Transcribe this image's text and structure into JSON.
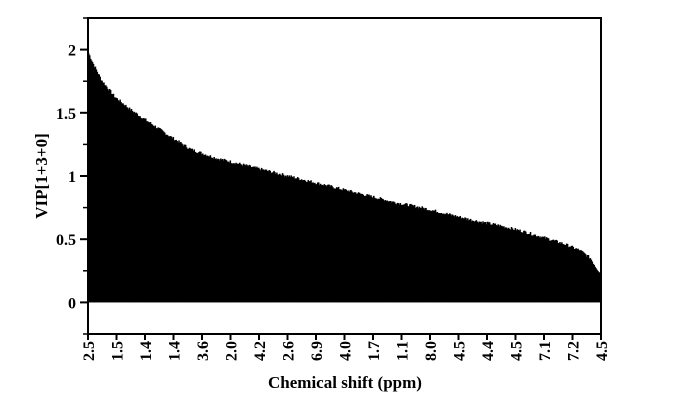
{
  "chart_data": {
    "type": "bar",
    "title": "",
    "xlabel": "Chemical shift (ppm)",
    "ylabel": "VIP[1+3+0]",
    "ylim": [
      -0.25,
      2.25
    ],
    "y_ticks": [
      0,
      0.5,
      1,
      1.5,
      2
    ],
    "y_tick_labels": [
      "0",
      "0.5",
      "1",
      "1.5",
      "2"
    ],
    "x_tick_labels": [
      "2.5",
      "1.5",
      "1.4",
      "1.4",
      "3.6",
      "2.0",
      "4.2",
      "2.6",
      "6.9",
      "4.0",
      "1.7",
      "1.1",
      "8.0",
      "4.5",
      "4.4",
      "4.5",
      "7.1",
      "7.2",
      "4.5"
    ],
    "bar_color": "#000000",
    "grid": false,
    "legend": "none",
    "num_variables": 540,
    "series": [
      {
        "name": "",
        "values_sorted_profile": {
          "description_ranks": "fraction of ordered variables (0 to 1)",
          "rank_fraction": [
            0.0,
            0.01,
            0.025,
            0.05,
            0.08,
            0.12,
            0.16,
            0.2,
            0.25,
            0.3,
            0.35,
            0.4,
            0.45,
            0.5,
            0.55,
            0.6,
            0.65,
            0.7,
            0.75,
            0.8,
            0.85,
            0.9,
            0.93,
            0.96,
            0.98,
            0.99,
            1.0
          ],
          "vip": [
            1.97,
            1.88,
            1.76,
            1.63,
            1.53,
            1.42,
            1.31,
            1.21,
            1.14,
            1.09,
            1.04,
            0.99,
            0.94,
            0.89,
            0.84,
            0.79,
            0.75,
            0.7,
            0.65,
            0.61,
            0.56,
            0.5,
            0.46,
            0.41,
            0.35,
            0.28,
            0.23
          ]
        }
      }
    ]
  }
}
